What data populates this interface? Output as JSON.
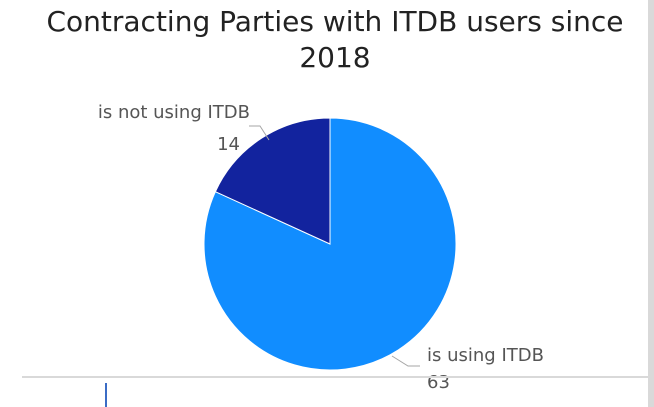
{
  "chart_data": {
    "type": "pie",
    "title": "Contracting Parties with ITDB users since 2018",
    "categories": [
      "is using ITDB",
      "is not using ITDB"
    ],
    "values": [
      63,
      14
    ],
    "value_labels": [
      "63",
      "14"
    ],
    "colors": [
      "#118dff",
      "#12239e"
    ],
    "legend": "none"
  }
}
